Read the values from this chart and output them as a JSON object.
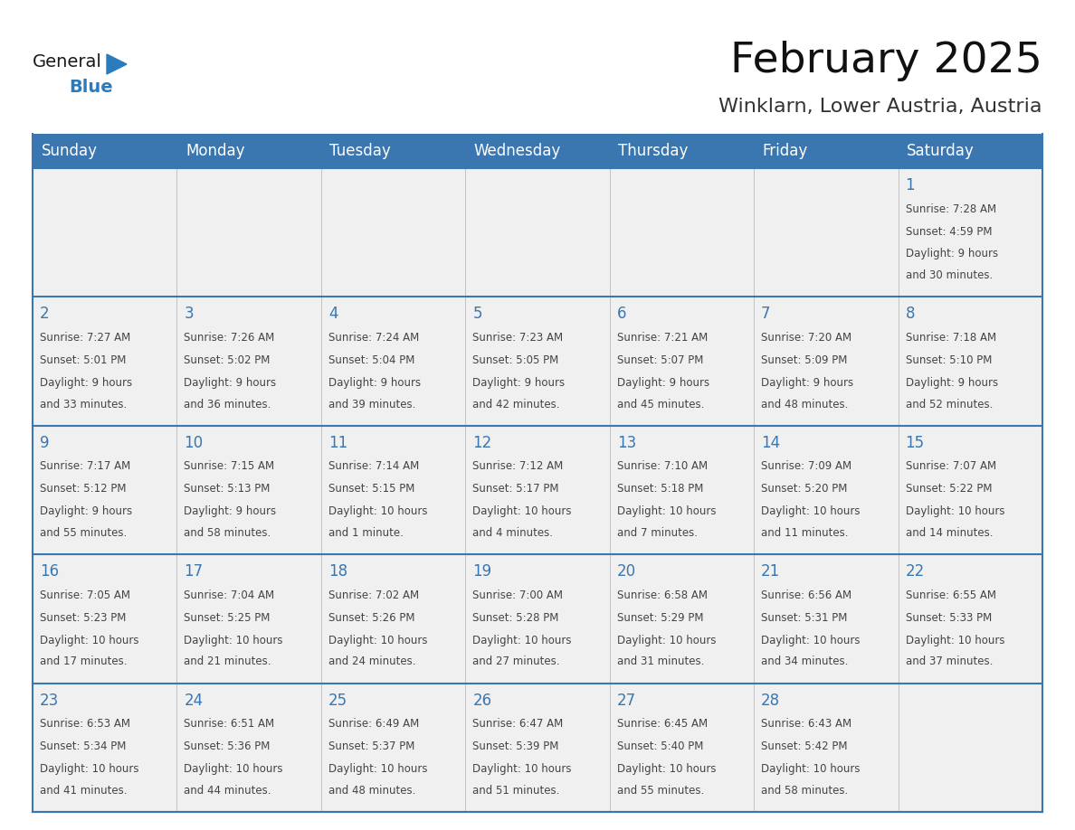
{
  "title": "February 2025",
  "subtitle": "Winklarn, Lower Austria, Austria",
  "header_bg": "#3A76B0",
  "header_text_color": "#FFFFFF",
  "cell_bg": "#F0F0F0",
  "text_color": "#444444",
  "day_number_color": "#3A76B0",
  "border_color": "#3A76B0",
  "line_color": "#AAAAAA",
  "days_of_week": [
    "Sunday",
    "Monday",
    "Tuesday",
    "Wednesday",
    "Thursday",
    "Friday",
    "Saturday"
  ],
  "calendar_data": [
    [
      null,
      null,
      null,
      null,
      null,
      null,
      {
        "day": 1,
        "sunrise": "7:28 AM",
        "sunset": "4:59 PM",
        "daylight": "9 hours\nand 30 minutes."
      }
    ],
    [
      {
        "day": 2,
        "sunrise": "7:27 AM",
        "sunset": "5:01 PM",
        "daylight": "9 hours\nand 33 minutes."
      },
      {
        "day": 3,
        "sunrise": "7:26 AM",
        "sunset": "5:02 PM",
        "daylight": "9 hours\nand 36 minutes."
      },
      {
        "day": 4,
        "sunrise": "7:24 AM",
        "sunset": "5:04 PM",
        "daylight": "9 hours\nand 39 minutes."
      },
      {
        "day": 5,
        "sunrise": "7:23 AM",
        "sunset": "5:05 PM",
        "daylight": "9 hours\nand 42 minutes."
      },
      {
        "day": 6,
        "sunrise": "7:21 AM",
        "sunset": "5:07 PM",
        "daylight": "9 hours\nand 45 minutes."
      },
      {
        "day": 7,
        "sunrise": "7:20 AM",
        "sunset": "5:09 PM",
        "daylight": "9 hours\nand 48 minutes."
      },
      {
        "day": 8,
        "sunrise": "7:18 AM",
        "sunset": "5:10 PM",
        "daylight": "9 hours\nand 52 minutes."
      }
    ],
    [
      {
        "day": 9,
        "sunrise": "7:17 AM",
        "sunset": "5:12 PM",
        "daylight": "9 hours\nand 55 minutes."
      },
      {
        "day": 10,
        "sunrise": "7:15 AM",
        "sunset": "5:13 PM",
        "daylight": "9 hours\nand 58 minutes."
      },
      {
        "day": 11,
        "sunrise": "7:14 AM",
        "sunset": "5:15 PM",
        "daylight": "10 hours\nand 1 minute."
      },
      {
        "day": 12,
        "sunrise": "7:12 AM",
        "sunset": "5:17 PM",
        "daylight": "10 hours\nand 4 minutes."
      },
      {
        "day": 13,
        "sunrise": "7:10 AM",
        "sunset": "5:18 PM",
        "daylight": "10 hours\nand 7 minutes."
      },
      {
        "day": 14,
        "sunrise": "7:09 AM",
        "sunset": "5:20 PM",
        "daylight": "10 hours\nand 11 minutes."
      },
      {
        "day": 15,
        "sunrise": "7:07 AM",
        "sunset": "5:22 PM",
        "daylight": "10 hours\nand 14 minutes."
      }
    ],
    [
      {
        "day": 16,
        "sunrise": "7:05 AM",
        "sunset": "5:23 PM",
        "daylight": "10 hours\nand 17 minutes."
      },
      {
        "day": 17,
        "sunrise": "7:04 AM",
        "sunset": "5:25 PM",
        "daylight": "10 hours\nand 21 minutes."
      },
      {
        "day": 18,
        "sunrise": "7:02 AM",
        "sunset": "5:26 PM",
        "daylight": "10 hours\nand 24 minutes."
      },
      {
        "day": 19,
        "sunrise": "7:00 AM",
        "sunset": "5:28 PM",
        "daylight": "10 hours\nand 27 minutes."
      },
      {
        "day": 20,
        "sunrise": "6:58 AM",
        "sunset": "5:29 PM",
        "daylight": "10 hours\nand 31 minutes."
      },
      {
        "day": 21,
        "sunrise": "6:56 AM",
        "sunset": "5:31 PM",
        "daylight": "10 hours\nand 34 minutes."
      },
      {
        "day": 22,
        "sunrise": "6:55 AM",
        "sunset": "5:33 PM",
        "daylight": "10 hours\nand 37 minutes."
      }
    ],
    [
      {
        "day": 23,
        "sunrise": "6:53 AM",
        "sunset": "5:34 PM",
        "daylight": "10 hours\nand 41 minutes."
      },
      {
        "day": 24,
        "sunrise": "6:51 AM",
        "sunset": "5:36 PM",
        "daylight": "10 hours\nand 44 minutes."
      },
      {
        "day": 25,
        "sunrise": "6:49 AM",
        "sunset": "5:37 PM",
        "daylight": "10 hours\nand 48 minutes."
      },
      {
        "day": 26,
        "sunrise": "6:47 AM",
        "sunset": "5:39 PM",
        "daylight": "10 hours\nand 51 minutes."
      },
      {
        "day": 27,
        "sunrise": "6:45 AM",
        "sunset": "5:40 PM",
        "daylight": "10 hours\nand 55 minutes."
      },
      {
        "day": 28,
        "sunrise": "6:43 AM",
        "sunset": "5:42 PM",
        "daylight": "10 hours\nand 58 minutes."
      },
      null
    ]
  ],
  "logo_color_general": "#1a1a1a",
  "logo_color_blue": "#2B7BBF",
  "logo_triangle_color": "#2B7BBF",
  "fig_width": 11.88,
  "fig_height": 9.18,
  "title_fontsize": 34,
  "subtitle_fontsize": 16,
  "header_fontsize": 12,
  "day_num_fontsize": 12,
  "cell_text_fontsize": 8.5
}
